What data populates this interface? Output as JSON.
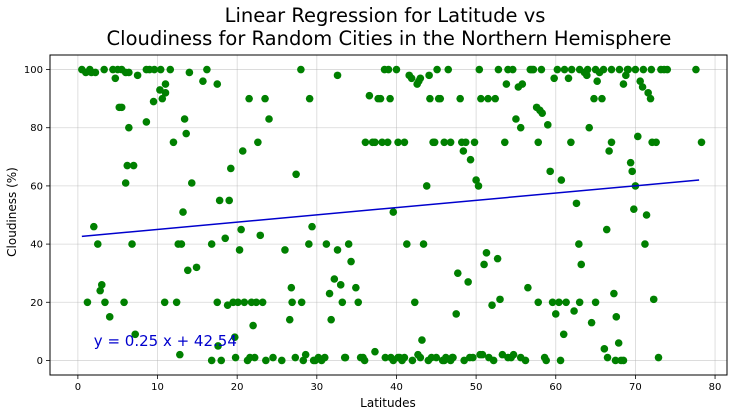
{
  "chart_data": {
    "type": "scatter",
    "title_lines": [
      "Linear Regression for Latitude vs",
      "Cloudiness for Random Cities in the Northern Hemisphere"
    ],
    "xlabel": "Latitudes",
    "ylabel": "Cloudiness (%)",
    "xlim": [
      -3.5,
      81.5
    ],
    "ylim": [
      -5,
      105
    ],
    "xticks": [
      0,
      10,
      20,
      30,
      40,
      50,
      60,
      70,
      80
    ],
    "yticks": [
      0,
      20,
      40,
      60,
      80,
      100
    ],
    "grid": true,
    "point_color": "#008000",
    "line_color": "#0000cd",
    "annotation": {
      "text": "y = 0.25 x + 42.54",
      "x": 2,
      "y": 5,
      "color": "#0000cd"
    },
    "regression": {
      "slope": 0.25,
      "intercept": 42.54,
      "x_range": [
        0.5,
        78
      ]
    },
    "points": [
      [
        0.5,
        100
      ],
      [
        1.0,
        99
      ],
      [
        1.5,
        100
      ],
      [
        1.7,
        99
      ],
      [
        2.2,
        99
      ],
      [
        3.3,
        100
      ],
      [
        4.4,
        100
      ],
      [
        4.7,
        97
      ],
      [
        5.0,
        100
      ],
      [
        5.5,
        100
      ],
      [
        6.0,
        99
      ],
      [
        6.4,
        99
      ],
      [
        7.5,
        98
      ],
      [
        8.6,
        100
      ],
      [
        9.0,
        100
      ],
      [
        9.6,
        100
      ],
      [
        10.4,
        100
      ],
      [
        11.0,
        95
      ],
      [
        11.6,
        100
      ],
      [
        14.0,
        99
      ],
      [
        15.7,
        96
      ],
      [
        16.2,
        100
      ],
      [
        17.5,
        95
      ],
      [
        21.5,
        90
      ],
      [
        23.5,
        90
      ],
      [
        29.1,
        90
      ],
      [
        32.6,
        98
      ],
      [
        28.0,
        100
      ],
      [
        1.2,
        20
      ],
      [
        2.0,
        46
      ],
      [
        2.5,
        40
      ],
      [
        2.8,
        24
      ],
      [
        3.0,
        26
      ],
      [
        3.4,
        20
      ],
      [
        4.0,
        15
      ],
      [
        5.2,
        87
      ],
      [
        5.5,
        87
      ],
      [
        5.8,
        20
      ],
      [
        6.0,
        61
      ],
      [
        6.2,
        67
      ],
      [
        6.4,
        80
      ],
      [
        6.8,
        40
      ],
      [
        7.0,
        67
      ],
      [
        7.2,
        9
      ],
      [
        8.6,
        82
      ],
      [
        9.5,
        89
      ],
      [
        10.3,
        93
      ],
      [
        10.6,
        90
      ],
      [
        10.9,
        20
      ],
      [
        11.0,
        92
      ],
      [
        12.0,
        75
      ],
      [
        12.4,
        20
      ],
      [
        12.6,
        40
      ],
      [
        12.8,
        2
      ],
      [
        13.0,
        40
      ],
      [
        13.2,
        51
      ],
      [
        13.6,
        78
      ],
      [
        13.4,
        83
      ],
      [
        13.8,
        31
      ],
      [
        14.3,
        61
      ],
      [
        14.9,
        32
      ],
      [
        16.8,
        40
      ],
      [
        17.5,
        20
      ],
      [
        17.8,
        55
      ],
      [
        17.6,
        5
      ],
      [
        18.0,
        0
      ],
      [
        18.5,
        42
      ],
      [
        18.8,
        19
      ],
      [
        19.0,
        55
      ],
      [
        19.2,
        66
      ],
      [
        19.5,
        20
      ],
      [
        19.7,
        8
      ],
      [
        20.1,
        20
      ],
      [
        20.3,
        38
      ],
      [
        20.5,
        45
      ],
      [
        20.7,
        72
      ],
      [
        20.9,
        20
      ],
      [
        21.3,
        0
      ],
      [
        21.6,
        1
      ],
      [
        21.8,
        20
      ],
      [
        22.0,
        12
      ],
      [
        22.4,
        20
      ],
      [
        22.6,
        75
      ],
      [
        22.9,
        43
      ],
      [
        23.2,
        20
      ],
      [
        23.6,
        0
      ],
      [
        24.0,
        83
      ],
      [
        25.6,
        0
      ],
      [
        26.0,
        38
      ],
      [
        26.6,
        14
      ],
      [
        26.8,
        25
      ],
      [
        26.9,
        20
      ],
      [
        27.4,
        64
      ],
      [
        28.1,
        20
      ],
      [
        28.3,
        0
      ],
      [
        28.6,
        2
      ],
      [
        29.0,
        40
      ],
      [
        29.4,
        46
      ],
      [
        29.8,
        0
      ],
      [
        30.2,
        1
      ],
      [
        30.6,
        0
      ],
      [
        31.2,
        40
      ],
      [
        31.6,
        23
      ],
      [
        31.8,
        14
      ],
      [
        32.2,
        28
      ],
      [
        32.6,
        38
      ],
      [
        33.0,
        26
      ],
      [
        33.2,
        20
      ],
      [
        33.6,
        1
      ],
      [
        34.0,
        40
      ],
      [
        34.3,
        34
      ],
      [
        34.9,
        25
      ],
      [
        35.2,
        20
      ],
      [
        35.8,
        1
      ],
      [
        36.1,
        75
      ],
      [
        36.6,
        91
      ],
      [
        37.3,
        3
      ],
      [
        37.7,
        90
      ],
      [
        38.2,
        75
      ],
      [
        38.5,
        100
      ],
      [
        38.9,
        75
      ],
      [
        39.2,
        90
      ],
      [
        39.6,
        51
      ],
      [
        40.0,
        100
      ],
      [
        40.4,
        1
      ],
      [
        40.7,
        0
      ],
      [
        41.0,
        75
      ],
      [
        41.3,
        40
      ],
      [
        41.6,
        98
      ],
      [
        41.9,
        97
      ],
      [
        42.3,
        20
      ],
      [
        42.6,
        95
      ],
      [
        42.8,
        96
      ],
      [
        43.0,
        97
      ],
      [
        43.2,
        7
      ],
      [
        43.4,
        40
      ],
      [
        43.8,
        60
      ],
      [
        44.1,
        98
      ],
      [
        44.4,
        1
      ],
      [
        44.8,
        75
      ],
      [
        45.1,
        100
      ],
      [
        45.5,
        90
      ],
      [
        45.8,
        0
      ],
      [
        46.2,
        1
      ],
      [
        46.5,
        100
      ],
      [
        46.8,
        0
      ],
      [
        47.1,
        1
      ],
      [
        47.5,
        16
      ],
      [
        47.7,
        30
      ],
      [
        48.0,
        90
      ],
      [
        48.4,
        72
      ],
      [
        48.7,
        75
      ],
      [
        49.0,
        27
      ],
      [
        49.3,
        69
      ],
      [
        49.6,
        1
      ],
      [
        49.8,
        75
      ],
      [
        50.0,
        62
      ],
      [
        50.3,
        60
      ],
      [
        50.6,
        90
      ],
      [
        51.0,
        33
      ],
      [
        51.3,
        37
      ],
      [
        51.6,
        1
      ],
      [
        52.0,
        19
      ],
      [
        52.4,
        90
      ],
      [
        52.7,
        35
      ],
      [
        53.0,
        21
      ],
      [
        53.3,
        2
      ],
      [
        53.6,
        75
      ],
      [
        54.0,
        100
      ],
      [
        54.4,
        1
      ],
      [
        54.7,
        2
      ],
      [
        55.0,
        83
      ],
      [
        55.3,
        94
      ],
      [
        55.6,
        80
      ],
      [
        55.8,
        95
      ],
      [
        56.2,
        0
      ],
      [
        56.5,
        25
      ],
      [
        56.8,
        100
      ],
      [
        57.2,
        100
      ],
      [
        57.6,
        87
      ],
      [
        57.8,
        75
      ],
      [
        58.0,
        86
      ],
      [
        58.3,
        85
      ],
      [
        58.6,
        1
      ],
      [
        59.0,
        81
      ],
      [
        59.3,
        65
      ],
      [
        59.6,
        20
      ],
      [
        60.0,
        16
      ],
      [
        60.4,
        20
      ],
      [
        60.7,
        62
      ],
      [
        61.0,
        9
      ],
      [
        61.3,
        20
      ],
      [
        61.6,
        97
      ],
      [
        61.9,
        75
      ],
      [
        62.3,
        17
      ],
      [
        62.6,
        54
      ],
      [
        62.9,
        40
      ],
      [
        63.2,
        33
      ],
      [
        63.6,
        99
      ],
      [
        63.9,
        98
      ],
      [
        64.2,
        80
      ],
      [
        64.5,
        13
      ],
      [
        64.8,
        90
      ],
      [
        65.2,
        96
      ],
      [
        65.5,
        99
      ],
      [
        65.8,
        90
      ],
      [
        66.1,
        4
      ],
      [
        66.4,
        45
      ],
      [
        66.7,
        72
      ],
      [
        67.0,
        75
      ],
      [
        67.3,
        23
      ],
      [
        67.6,
        15
      ],
      [
        67.9,
        6
      ],
      [
        68.2,
        0
      ],
      [
        68.5,
        95
      ],
      [
        68.8,
        98
      ],
      [
        69.1,
        100
      ],
      [
        69.4,
        68
      ],
      [
        69.6,
        65
      ],
      [
        69.8,
        52
      ],
      [
        70.0,
        60
      ],
      [
        70.3,
        77
      ],
      [
        70.6,
        96
      ],
      [
        70.9,
        94
      ],
      [
        71.2,
        40
      ],
      [
        71.4,
        50
      ],
      [
        71.6,
        92
      ],
      [
        71.9,
        90
      ],
      [
        72.1,
        75
      ],
      [
        72.3,
        21
      ],
      [
        72.6,
        75
      ],
      [
        72.9,
        1
      ],
      [
        73.2,
        100
      ],
      [
        73.6,
        100
      ],
      [
        74.0,
        100
      ],
      [
        77.6,
        100
      ],
      [
        78.3,
        75
      ],
      [
        37.0,
        75
      ],
      [
        37.3,
        75
      ],
      [
        38.0,
        90
      ],
      [
        39.0,
        100
      ],
      [
        40.2,
        75
      ],
      [
        44.2,
        90
      ],
      [
        44.6,
        75
      ],
      [
        45.3,
        90
      ],
      [
        46.0,
        75
      ],
      [
        46.8,
        75
      ],
      [
        48.2,
        75
      ],
      [
        50.4,
        100
      ],
      [
        51.5,
        90
      ],
      [
        52.8,
        100
      ],
      [
        53.8,
        95
      ],
      [
        54.6,
        100
      ],
      [
        57.0,
        100
      ],
      [
        58.2,
        100
      ],
      [
        59.8,
        97
      ],
      [
        60.2,
        100
      ],
      [
        61.1,
        100
      ],
      [
        62.0,
        100
      ],
      [
        63.0,
        100
      ],
      [
        64.0,
        100
      ],
      [
        65.0,
        100
      ],
      [
        66.0,
        100
      ],
      [
        67.0,
        100
      ],
      [
        68.0,
        100
      ],
      [
        69.0,
        100
      ],
      [
        70.0,
        100
      ],
      [
        71.0,
        100
      ],
      [
        72.0,
        100
      ],
      [
        39.6,
        0
      ],
      [
        40.2,
        1
      ],
      [
        41.0,
        1
      ],
      [
        42.0,
        0
      ],
      [
        43.0,
        1
      ],
      [
        44.0,
        0
      ],
      [
        45.0,
        1
      ],
      [
        46.0,
        0
      ],
      [
        47.0,
        1
      ],
      [
        48.5,
        0
      ],
      [
        49.2,
        1
      ],
      [
        50.8,
        2
      ],
      [
        52.2,
        0
      ],
      [
        54.0,
        1
      ],
      [
        55.6,
        1
      ],
      [
        57.8,
        20
      ],
      [
        58.8,
        0
      ],
      [
        60.6,
        0
      ],
      [
        63.0,
        20
      ],
      [
        65.0,
        20
      ],
      [
        66.5,
        1
      ],
      [
        67.5,
        0
      ],
      [
        68.5,
        0
      ],
      [
        50.5,
        2
      ],
      [
        36.0,
        0
      ],
      [
        35.5,
        1
      ],
      [
        38.6,
        1
      ],
      [
        39.3,
        1
      ],
      [
        42.7,
        2
      ],
      [
        33.5,
        1
      ],
      [
        31.0,
        1
      ],
      [
        29.6,
        0
      ],
      [
        27.3,
        1
      ],
      [
        24.5,
        1
      ],
      [
        22.2,
        1
      ],
      [
        16.8,
        0
      ],
      [
        19.8,
        1
      ]
    ]
  }
}
